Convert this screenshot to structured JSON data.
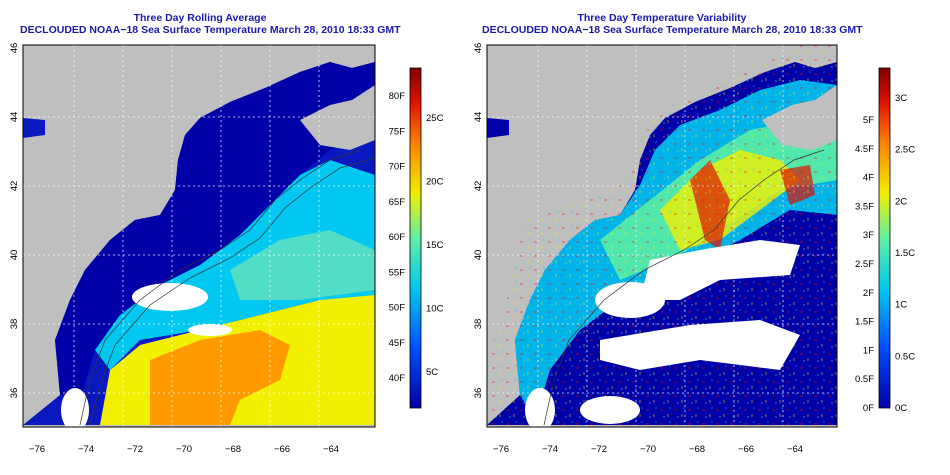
{
  "panels": [
    {
      "title_line1": "Three Day Rolling Average",
      "title_line2": "DECLOUDED NOAA−18 Sea Surface Temperature March 28, 2010 18:33 GMT",
      "lon_ticks": [
        "−76",
        "−74",
        "−72",
        "−70",
        "−68",
        "−66",
        "−64"
      ],
      "lat_ticks": [
        "36",
        "38",
        "40",
        "42",
        "44",
        "46"
      ],
      "colorbar_f": [
        "40F",
        "45F",
        "50F",
        "55F",
        "60F",
        "65F",
        "70F",
        "75F",
        "80F"
      ],
      "colorbar_c": [
        "5C",
        "10C",
        "15C",
        "20C",
        "25C"
      ],
      "colorbar_colors": [
        "#0000a8",
        "#0050ff",
        "#00c8f0",
        "#60f0a0",
        "#f0f000",
        "#ff8000",
        "#e01000",
        "#800000"
      ]
    },
    {
      "title_line1": "Three Day Temperature Variability",
      "title_line2": "DECLOUDED NOAA−18 Sea Surface Temperature March 28, 2010 18:33 GMT",
      "lon_ticks": [
        "−76",
        "−74",
        "−72",
        "−70",
        "−68",
        "−66",
        "−64"
      ],
      "lat_ticks": [
        "36",
        "38",
        "40",
        "42",
        "44",
        "46"
      ],
      "colorbar_f": [
        "0F",
        "0.5F",
        "1F",
        "1.5F",
        "2F",
        "2.5F",
        "3F",
        "3.5F",
        "4F",
        "4.5F",
        "5F"
      ],
      "colorbar_c": [
        "0C",
        "0.5C",
        "1C",
        "1.5C",
        "2C",
        "2.5C",
        "3C"
      ],
      "colorbar_colors": [
        "#0000a8",
        "#0050ff",
        "#00c8f0",
        "#60f0a0",
        "#f0f000",
        "#ff8000",
        "#e01000",
        "#800000"
      ]
    }
  ]
}
